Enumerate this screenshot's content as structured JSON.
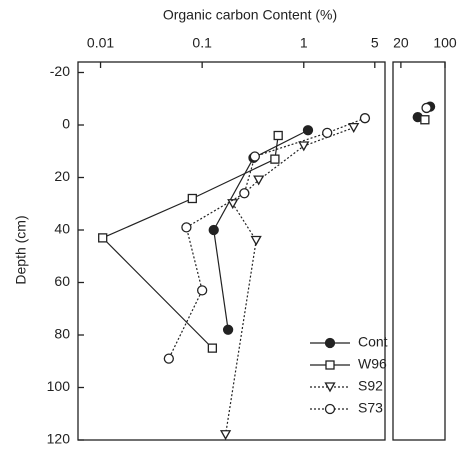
{
  "chart_data": {
    "type": "line",
    "xlabel": "Organic carbon Content (%)",
    "ylabel": "Depth (cm)",
    "xscale": "log",
    "xlim": [
      0.006,
      6.3
    ],
    "xticks": [
      0.01,
      0.1,
      1,
      5
    ],
    "x2lim": [
      15,
      100
    ],
    "x2ticks": [
      20,
      100
    ],
    "ylim": [
      -24,
      120
    ],
    "yticks": [
      -20,
      0,
      20,
      40,
      60,
      80,
      100,
      120
    ],
    "y_inverted": true,
    "legend": "lower right",
    "series": [
      {
        "name": "Cont",
        "color": "#222",
        "marker": "circle",
        "filled": true,
        "linestyle": "solid",
        "x": [
          1.1,
          0.32,
          0.13,
          0.18
        ],
        "depth": [
          2,
          12.5,
          40,
          78
        ],
        "litter_x": [
          37,
          58
        ],
        "litter_depth": [
          -3,
          -7
        ]
      },
      {
        "name": "W96",
        "color": "#222",
        "marker": "square",
        "filled": false,
        "linestyle": "solid",
        "x": [
          0.56,
          0.52,
          0.08,
          0.0105,
          0.126
        ],
        "depth": [
          4,
          13,
          28,
          43,
          85
        ],
        "litter_x": [
          48
        ],
        "litter_depth": [
          -2
        ]
      },
      {
        "name": "S92",
        "color": "#222",
        "marker": "triangle",
        "filled": false,
        "linestyle": "dotted",
        "x": [
          3.1,
          1.0,
          0.36,
          0.2,
          0.34,
          0.17
        ],
        "depth": [
          1,
          8,
          21,
          30,
          44,
          118
        ],
        "litter_x": [],
        "litter_depth": []
      },
      {
        "name": "S73",
        "color": "#222",
        "marker": "circle",
        "filled": false,
        "linestyle": "dotted",
        "x": [
          4,
          1.7,
          0.33,
          0.26,
          0.07,
          0.1,
          0.047
        ],
        "depth": [
          -2.6,
          3,
          12,
          26,
          39,
          63,
          89
        ],
        "litter_x": [
          51
        ],
        "litter_depth": [
          -6.5
        ]
      }
    ]
  }
}
